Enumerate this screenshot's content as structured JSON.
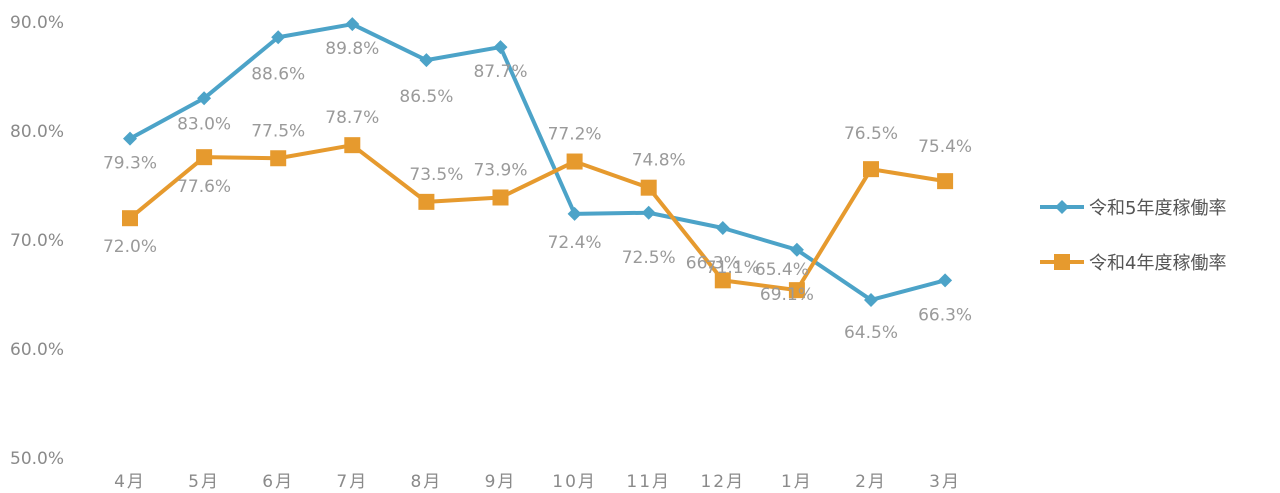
{
  "chart_data": {
    "type": "line",
    "title": "",
    "xlabel": "",
    "ylabel": "",
    "ylim": [
      50,
      90
    ],
    "yticks": [
      "50.0%",
      "60.0%",
      "70.0%",
      "80.0%",
      "90.0%"
    ],
    "ytick_values": [
      50,
      60,
      70,
      80,
      90
    ],
    "categories": [
      "4月",
      "5月",
      "6月",
      "7月",
      "8月",
      "9月",
      "10月",
      "11月",
      "12月",
      "1月",
      "2月",
      "3月"
    ],
    "grid": false,
    "legend_position": "right",
    "series": [
      {
        "name": "令和5年度稼働率",
        "color": "#4ca3c8",
        "marker": "diamond",
        "values": [
          79.3,
          83.0,
          88.6,
          89.8,
          86.5,
          87.7,
          72.4,
          72.5,
          71.1,
          69.1,
          64.5,
          66.3
        ],
        "labels": [
          "79.3%",
          "83.0%",
          "88.6%",
          "89.8%",
          "86.5%",
          "87.7%",
          "72.4%",
          "72.5%",
          "71.1%",
          "69.1%",
          "64.5%",
          "66.3%"
        ]
      },
      {
        "name": "令和4年度稼働率",
        "color": "#e69a2e",
        "marker": "square",
        "values": [
          72.0,
          77.6,
          77.5,
          78.7,
          73.5,
          73.9,
          77.2,
          74.8,
          66.3,
          65.4,
          76.5,
          75.4
        ],
        "labels": [
          "72.0%",
          "77.6%",
          "77.5%",
          "78.7%",
          "73.5%",
          "73.9%",
          "77.2%",
          "74.8%",
          "66.3%",
          "65.4%",
          "76.5%",
          "75.4%"
        ]
      }
    ]
  }
}
